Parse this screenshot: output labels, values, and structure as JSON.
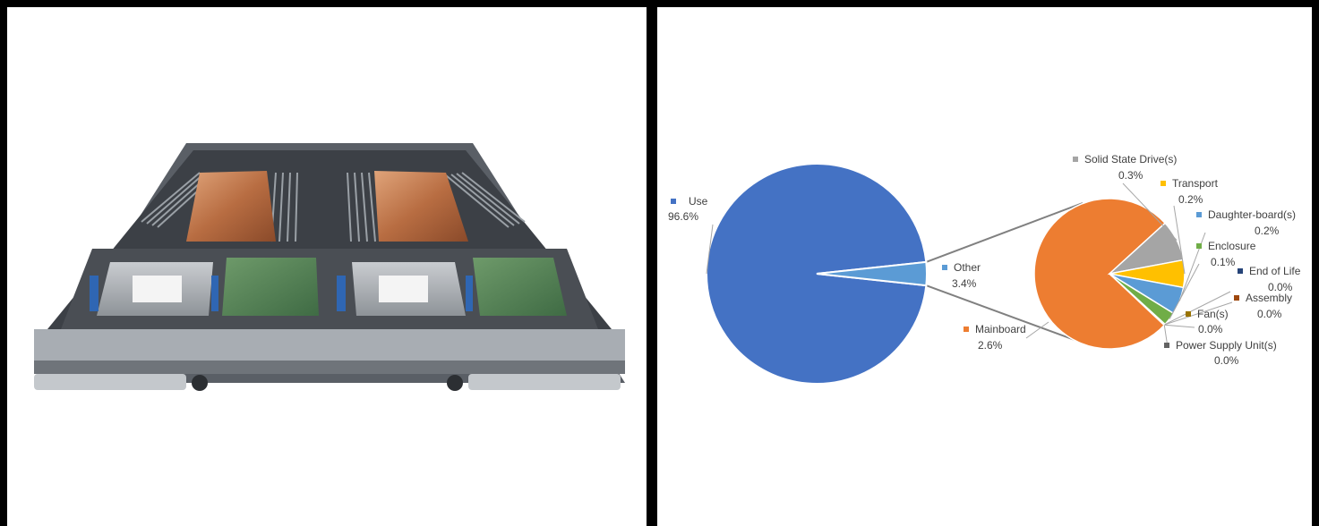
{
  "colors": {
    "use": "#4472C4",
    "mainboard": "#ED7D31",
    "solid_state_drive": "#A5A5A5",
    "transport": "#FFC000",
    "daughter_board": "#5B9BD5",
    "enclosure": "#70AD47",
    "end_of_life": "#264478",
    "assembly": "#9E480E",
    "fan": "#997300",
    "power_supply_unit": "#636363",
    "connector": "#808080"
  },
  "photo": {
    "name": "server-blade-photo"
  },
  "chart_data": {
    "type": "pie",
    "subtype": "pie-of-pie",
    "title": "",
    "primary": {
      "slices": [
        {
          "label": "Use",
          "value": 96.6,
          "pct_label": "96.6%"
        },
        {
          "label": "Other",
          "value": 3.4,
          "pct_label": "3.4%"
        }
      ]
    },
    "secondary": {
      "slices": [
        {
          "label": "Mainboard",
          "value": 2.6,
          "pct_label": "2.6%"
        },
        {
          "label": "Solid State Drive(s)",
          "value": 0.3,
          "pct_label": "0.3%"
        },
        {
          "label": "Transport",
          "value": 0.2,
          "pct_label": "0.2%"
        },
        {
          "label": "Daughter-board(s)",
          "value": 0.2,
          "pct_label": "0.2%"
        },
        {
          "label": "Enclosure",
          "value": 0.1,
          "pct_label": "0.1%"
        },
        {
          "label": "End of Life",
          "value": 0.0,
          "pct_label": "0.0%"
        },
        {
          "label": "Assembly",
          "value": 0.0,
          "pct_label": "0.0%"
        },
        {
          "label": "Fan(s)",
          "value": 0.0,
          "pct_label": "0.0%"
        },
        {
          "label": "Power Supply Unit(s)",
          "value": 0.0,
          "pct_label": "0.0%"
        }
      ]
    }
  }
}
